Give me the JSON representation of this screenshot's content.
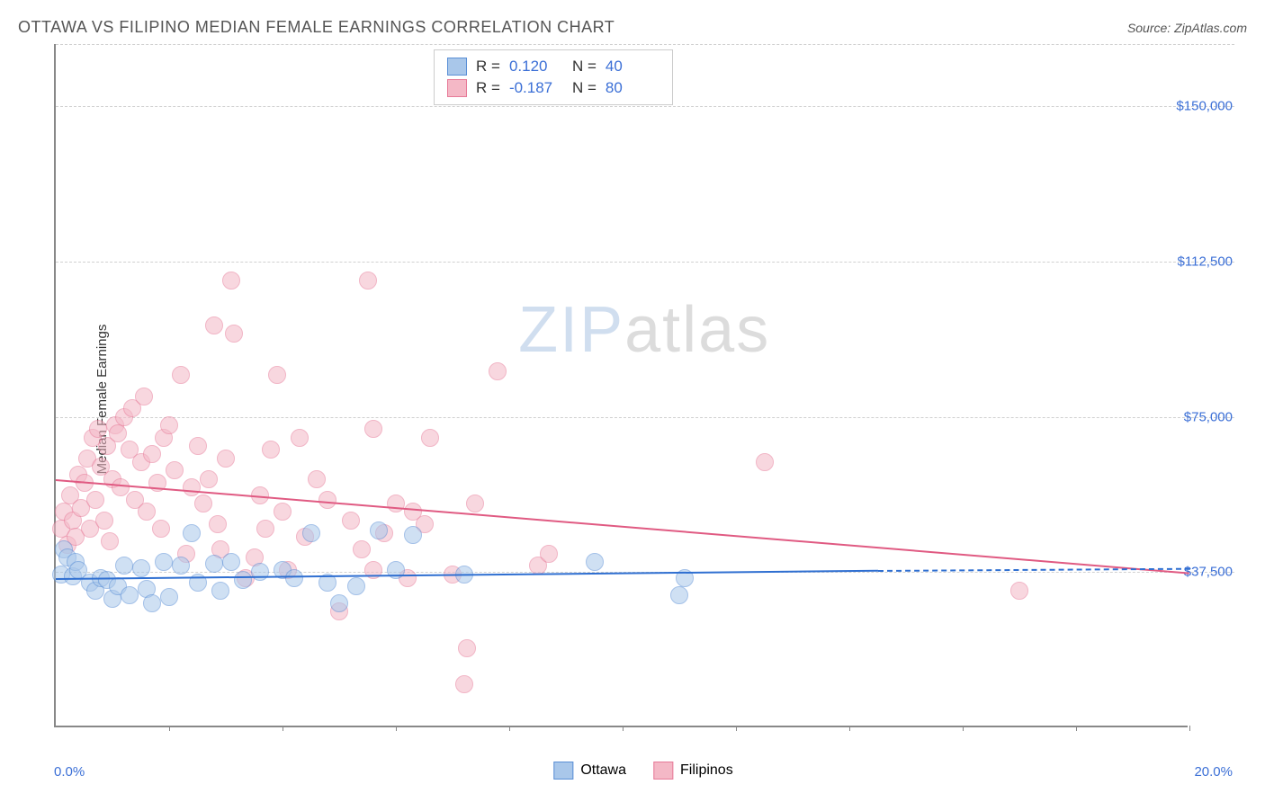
{
  "title": "OTTAWA VS FILIPINO MEDIAN FEMALE EARNINGS CORRELATION CHART",
  "source_label": "Source: ZipAtlas.com",
  "ylabel": "Median Female Earnings",
  "watermark_zip": "ZIP",
  "watermark_atlas": "atlas",
  "chart": {
    "type": "scatter",
    "xlim": [
      0,
      20
    ],
    "ylim": [
      0,
      165000
    ],
    "x_start_label": "0.0%",
    "x_end_label": "20.0%",
    "xtick_positions": [
      2,
      4,
      6,
      8,
      10,
      12,
      14,
      16,
      18,
      20
    ],
    "y_gridlines": [
      37500,
      75000,
      112500,
      150000,
      165000
    ],
    "y_labels": [
      "$37,500",
      "$75,000",
      "$112,500",
      "$150,000"
    ],
    "background_color": "#ffffff",
    "grid_color": "#d0d0d0",
    "axis_color": "#888888",
    "ytick_color": "#3b6fd6",
    "marker_radius": 10,
    "marker_opacity": 0.55,
    "series": {
      "ottawa": {
        "label": "Ottawa",
        "color_fill": "#a9c7ea",
        "color_border": "#5a8fd6",
        "R": "0.120",
        "N": "40",
        "trend": {
          "x1": 0,
          "y1": 36000,
          "x2": 14.5,
          "y2": 38000,
          "color": "#2f6fd1",
          "width": 2
        },
        "trend_dash": {
          "x1": 14.5,
          "y1": 38000,
          "x2": 20,
          "y2": 38500,
          "color": "#2f6fd1"
        },
        "points": [
          [
            0.1,
            37000
          ],
          [
            0.15,
            43000
          ],
          [
            0.2,
            41000
          ],
          [
            0.3,
            36500
          ],
          [
            0.35,
            40000
          ],
          [
            0.4,
            38000
          ],
          [
            0.6,
            35000
          ],
          [
            0.7,
            33000
          ],
          [
            0.8,
            36000
          ],
          [
            0.9,
            35500
          ],
          [
            1.0,
            31000
          ],
          [
            1.1,
            34000
          ],
          [
            1.2,
            39000
          ],
          [
            1.3,
            32000
          ],
          [
            1.5,
            38500
          ],
          [
            1.6,
            33500
          ],
          [
            1.7,
            30000
          ],
          [
            1.9,
            40000
          ],
          [
            2.0,
            31500
          ],
          [
            2.2,
            39000
          ],
          [
            2.4,
            47000
          ],
          [
            2.5,
            35000
          ],
          [
            2.8,
            39500
          ],
          [
            2.9,
            33000
          ],
          [
            3.1,
            40000
          ],
          [
            3.3,
            35500
          ],
          [
            3.6,
            37500
          ],
          [
            4.0,
            38000
          ],
          [
            4.2,
            36000
          ],
          [
            4.5,
            47000
          ],
          [
            4.8,
            35000
          ],
          [
            5.0,
            30000
          ],
          [
            5.3,
            34000
          ],
          [
            5.7,
            47500
          ],
          [
            6.0,
            38000
          ],
          [
            6.3,
            46500
          ],
          [
            7.2,
            37000
          ],
          [
            9.5,
            40000
          ],
          [
            11.0,
            32000
          ],
          [
            11.1,
            36000
          ]
        ]
      },
      "filipinos": {
        "label": "Filipinos",
        "color_fill": "#f4b8c6",
        "color_border": "#e77a98",
        "R": "-0.187",
        "N": "80",
        "trend": {
          "x1": 0,
          "y1": 60000,
          "x2": 20,
          "y2": 37500,
          "color": "#e05a82",
          "width": 2
        },
        "points": [
          [
            0.1,
            48000
          ],
          [
            0.15,
            52000
          ],
          [
            0.2,
            44000
          ],
          [
            0.25,
            56000
          ],
          [
            0.3,
            50000
          ],
          [
            0.35,
            46000
          ],
          [
            0.4,
            61000
          ],
          [
            0.45,
            53000
          ],
          [
            0.5,
            59000
          ],
          [
            0.55,
            65000
          ],
          [
            0.6,
            48000
          ],
          [
            0.65,
            70000
          ],
          [
            0.7,
            55000
          ],
          [
            0.75,
            72000
          ],
          [
            0.8,
            63000
          ],
          [
            0.85,
            50000
          ],
          [
            0.9,
            68000
          ],
          [
            0.95,
            45000
          ],
          [
            1.0,
            60000
          ],
          [
            1.05,
            73000
          ],
          [
            1.1,
            71000
          ],
          [
            1.15,
            58000
          ],
          [
            1.2,
            75000
          ],
          [
            1.3,
            67000
          ],
          [
            1.35,
            77000
          ],
          [
            1.4,
            55000
          ],
          [
            1.5,
            64000
          ],
          [
            1.55,
            80000
          ],
          [
            1.6,
            52000
          ],
          [
            1.7,
            66000
          ],
          [
            1.8,
            59000
          ],
          [
            1.85,
            48000
          ],
          [
            1.9,
            70000
          ],
          [
            2.0,
            73000
          ],
          [
            2.1,
            62000
          ],
          [
            2.2,
            85000
          ],
          [
            2.3,
            42000
          ],
          [
            2.4,
            58000
          ],
          [
            2.5,
            68000
          ],
          [
            2.6,
            54000
          ],
          [
            2.7,
            60000
          ],
          [
            2.8,
            97000
          ],
          [
            2.85,
            49000
          ],
          [
            2.9,
            43000
          ],
          [
            3.0,
            65000
          ],
          [
            3.1,
            108000
          ],
          [
            3.15,
            95000
          ],
          [
            3.35,
            36000
          ],
          [
            3.5,
            41000
          ],
          [
            3.6,
            56000
          ],
          [
            3.7,
            48000
          ],
          [
            3.8,
            67000
          ],
          [
            3.9,
            85000
          ],
          [
            4.0,
            52000
          ],
          [
            4.1,
            38000
          ],
          [
            4.3,
            70000
          ],
          [
            4.4,
            46000
          ],
          [
            4.6,
            60000
          ],
          [
            4.8,
            55000
          ],
          [
            5.0,
            28000
          ],
          [
            5.2,
            50000
          ],
          [
            5.4,
            43000
          ],
          [
            5.5,
            108000
          ],
          [
            5.6,
            38000
          ],
          [
            5.6,
            72000
          ],
          [
            5.8,
            47000
          ],
          [
            6.0,
            54000
          ],
          [
            6.2,
            36000
          ],
          [
            6.3,
            52000
          ],
          [
            6.5,
            49000
          ],
          [
            6.6,
            70000
          ],
          [
            7.0,
            37000
          ],
          [
            7.2,
            10500
          ],
          [
            7.25,
            19000
          ],
          [
            7.4,
            54000
          ],
          [
            7.8,
            86000
          ],
          [
            8.5,
            39000
          ],
          [
            8.7,
            42000
          ],
          [
            12.5,
            64000
          ],
          [
            17.0,
            33000
          ]
        ]
      }
    }
  }
}
